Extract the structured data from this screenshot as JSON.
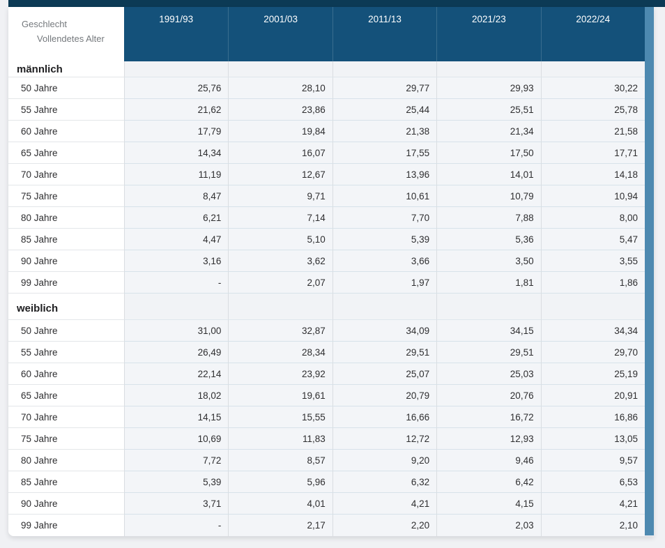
{
  "colors": {
    "topbar_bg": "#0c3a55",
    "header_bg": "#14517a",
    "scrollbar": "#4d89b0",
    "page_bg": "#f0f1f4"
  },
  "table": {
    "corner": {
      "line1": "Geschlecht",
      "line2": "Vollendetes Alter"
    },
    "columns": [
      "1991/93",
      "2001/03",
      "2011/13",
      "2021/23",
      "2022/24"
    ],
    "sections": [
      {
        "label": "männlich",
        "rows": [
          {
            "label": "50 Jahre",
            "values": [
              "25,76",
              "28,10",
              "29,77",
              "29,93",
              "30,22"
            ]
          },
          {
            "label": "55 Jahre",
            "values": [
              "21,62",
              "23,86",
              "25,44",
              "25,51",
              "25,78"
            ]
          },
          {
            "label": "60 Jahre",
            "values": [
              "17,79",
              "19,84",
              "21,38",
              "21,34",
              "21,58"
            ]
          },
          {
            "label": "65 Jahre",
            "values": [
              "14,34",
              "16,07",
              "17,55",
              "17,50",
              "17,71"
            ]
          },
          {
            "label": "70 Jahre",
            "values": [
              "11,19",
              "12,67",
              "13,96",
              "14,01",
              "14,18"
            ]
          },
          {
            "label": "75 Jahre",
            "values": [
              "8,47",
              "9,71",
              "10,61",
              "10,79",
              "10,94"
            ]
          },
          {
            "label": "80 Jahre",
            "values": [
              "6,21",
              "7,14",
              "7,70",
              "7,88",
              "8,00"
            ]
          },
          {
            "label": "85 Jahre",
            "values": [
              "4,47",
              "5,10",
              "5,39",
              "5,36",
              "5,47"
            ]
          },
          {
            "label": "90 Jahre",
            "values": [
              "3,16",
              "3,62",
              "3,66",
              "3,50",
              "3,55"
            ]
          },
          {
            "label": "99 Jahre",
            "values": [
              "-",
              "2,07",
              "1,97",
              "1,81",
              "1,86"
            ]
          }
        ]
      },
      {
        "label": "weiblich",
        "rows": [
          {
            "label": "50 Jahre",
            "values": [
              "31,00",
              "32,87",
              "34,09",
              "34,15",
              "34,34"
            ]
          },
          {
            "label": "55 Jahre",
            "values": [
              "26,49",
              "28,34",
              "29,51",
              "29,51",
              "29,70"
            ]
          },
          {
            "label": "60 Jahre",
            "values": [
              "22,14",
              "23,92",
              "25,07",
              "25,03",
              "25,19"
            ]
          },
          {
            "label": "65 Jahre",
            "values": [
              "18,02",
              "19,61",
              "20,79",
              "20,76",
              "20,91"
            ]
          },
          {
            "label": "70 Jahre",
            "values": [
              "14,15",
              "15,55",
              "16,66",
              "16,72",
              "16,86"
            ]
          },
          {
            "label": "75 Jahre",
            "values": [
              "10,69",
              "11,83",
              "12,72",
              "12,93",
              "13,05"
            ]
          },
          {
            "label": "80 Jahre",
            "values": [
              "7,72",
              "8,57",
              "9,20",
              "9,46",
              "9,57"
            ]
          },
          {
            "label": "85 Jahre",
            "values": [
              "5,39",
              "5,96",
              "6,32",
              "6,42",
              "6,53"
            ]
          },
          {
            "label": "90 Jahre",
            "values": [
              "3,71",
              "4,01",
              "4,21",
              "4,15",
              "4,21"
            ]
          },
          {
            "label": "99 Jahre",
            "values": [
              "-",
              "2,17",
              "2,20",
              "2,03",
              "2,10"
            ]
          }
        ]
      }
    ]
  }
}
